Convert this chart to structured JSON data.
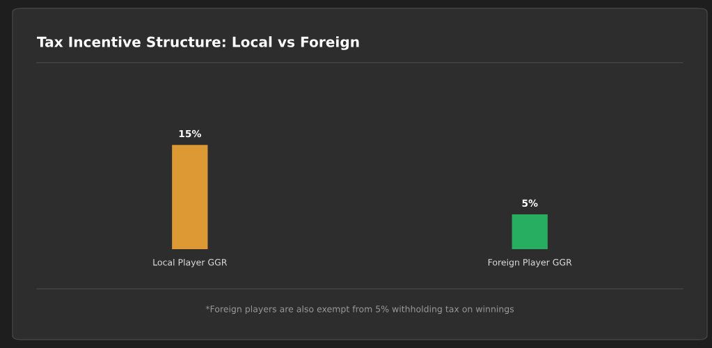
{
  "chart_data": {
    "type": "bar",
    "title": "Tax Incentive Structure: Local vs Foreign",
    "categories": [
      "Local Player GGR",
      "Foreign Player GGR"
    ],
    "values": [
      15,
      5
    ],
    "colors": [
      "#dd9933",
      "#27ae60"
    ],
    "value_labels": [
      "15%",
      "5%"
    ],
    "annotations": [
      "*Foreign players are also exempt from 5% withholding tax on winnings"
    ],
    "grid": false,
    "legend": false
  }
}
